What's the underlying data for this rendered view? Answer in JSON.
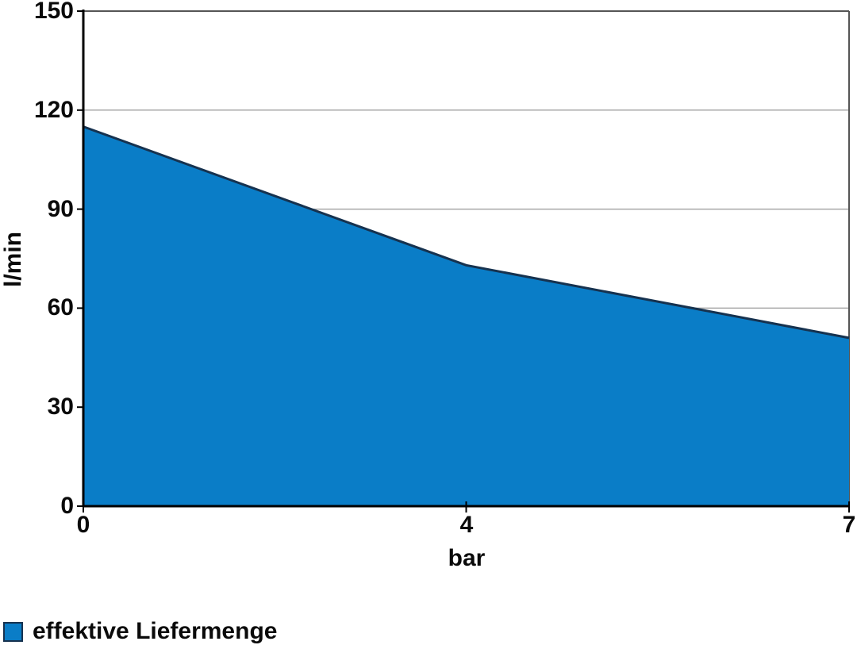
{
  "chart_data": {
    "type": "area",
    "title": "",
    "x": [
      0,
      4,
      7
    ],
    "series": [
      {
        "name": "effektive Liefermenge",
        "values": [
          115,
          73,
          51
        ]
      }
    ],
    "xlabel": "bar",
    "ylabel": "l/min",
    "ylim": [
      0,
      150
    ],
    "yticks": [
      0,
      30,
      60,
      90,
      120,
      150
    ],
    "xticks": [
      0,
      4,
      7
    ],
    "x_axis_type": "category-equal-spacing",
    "grid": "horizontal",
    "legend_position": "bottom-left",
    "colors": {
      "area_fill": "#0a7dc7",
      "area_border": "#16324f",
      "axis": "#000000",
      "gridline": "#a8a8a8",
      "plot_border": "#555555",
      "text": "#0a0a0a",
      "background": "#ffffff"
    }
  }
}
